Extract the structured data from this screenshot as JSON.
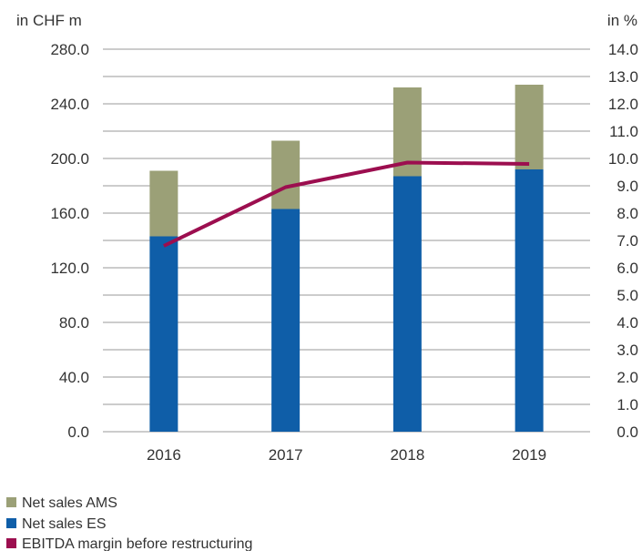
{
  "chart_data": {
    "type": "bar",
    "stacked": true,
    "categories": [
      "2016",
      "2017",
      "2018",
      "2019"
    ],
    "series": [
      {
        "name": "Net sales ES",
        "axis": "left",
        "type": "bar",
        "color": "#0f5ea8",
        "values": [
          143,
          163,
          187,
          192
        ]
      },
      {
        "name": "Net sales AMS",
        "axis": "left",
        "type": "bar",
        "color": "#9ba077",
        "values": [
          48,
          50,
          65,
          62
        ]
      },
      {
        "name": "EBITDA margin before restructuring",
        "axis": "right",
        "type": "line",
        "color": "#9c0e4f",
        "values": [
          6.8,
          8.95,
          9.85,
          9.8
        ]
      }
    ],
    "left_axis": {
      "unit_label": "in CHF m",
      "ylim": [
        0,
        280
      ],
      "tick_values": [
        0,
        40,
        80,
        120,
        160,
        200,
        240,
        280
      ],
      "tick_labels": [
        "0.0",
        "40.0",
        "80.0",
        "120.0",
        "160.0",
        "200.0",
        "240.0",
        "280.0"
      ]
    },
    "right_axis": {
      "unit_label": "in %",
      "ylim": [
        0,
        14
      ],
      "tick_values": [
        0,
        1,
        2,
        3,
        4,
        5,
        6,
        7,
        8,
        9,
        10,
        11,
        12,
        13,
        14
      ],
      "tick_labels": [
        "0.0",
        "1.0",
        "2.0",
        "3.0",
        "4.0",
        "5.0",
        "6.0",
        "7.0",
        "8.0",
        "9.0",
        "10.0",
        "11.0",
        "12.0",
        "13.0",
        "14.0"
      ]
    },
    "grid": true,
    "gridline_color": "#9a9a9a",
    "legend_position": "bottom-left",
    "legend": [
      {
        "label": "Net sales AMS",
        "color": "#9ba077"
      },
      {
        "label": "Net sales ES",
        "color": "#0f5ea8"
      },
      {
        "label": "EBITDA margin before restructuring",
        "color": "#9c0e4f"
      }
    ]
  }
}
